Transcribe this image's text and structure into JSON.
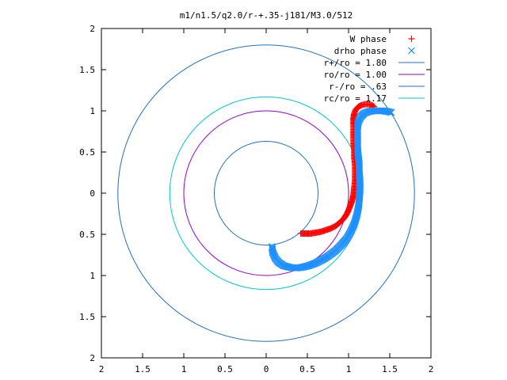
{
  "chart_data": {
    "type": "scatter",
    "title": "m1/n1.5/q2.0/r-+.35-j181/M3.0/512",
    "xlabel": "",
    "ylabel": "",
    "xlim": [
      -2,
      2
    ],
    "ylim": [
      -2,
      2
    ],
    "x_ticks": [
      -2,
      -1.5,
      -1,
      -0.5,
      0,
      0.5,
      1,
      1.5,
      2
    ],
    "y_ticks": [
      -2,
      -1.5,
      -1,
      -0.5,
      0,
      0.5,
      1,
      1.5,
      2
    ],
    "x_tick_labels": [
      "2",
      "1.5",
      "1",
      "0.5",
      "0",
      "0.5",
      "1",
      "1.5",
      "2"
    ],
    "y_tick_labels": [
      "2",
      "1.5",
      "1",
      "0.5",
      "0",
      "0.5",
      "1",
      "1.5",
      "2"
    ],
    "grid": false,
    "legend_position": "top-right",
    "series": [
      {
        "name": "W phase",
        "kind": "points",
        "marker": "plus",
        "color": "#ff0000",
        "points": [
          [
            0.42,
            -0.49
          ],
          [
            0.48,
            -0.49
          ],
          [
            0.54,
            -0.49
          ],
          [
            0.6,
            -0.48
          ],
          [
            0.66,
            -0.47
          ],
          [
            0.72,
            -0.45
          ],
          [
            0.78,
            -0.43
          ],
          [
            0.84,
            -0.4
          ],
          [
            0.89,
            -0.36
          ],
          [
            0.94,
            -0.31
          ],
          [
            0.98,
            -0.25
          ],
          [
            1.01,
            -0.18
          ],
          [
            1.04,
            -0.1
          ],
          [
            1.06,
            -0.02
          ],
          [
            1.07,
            0.07
          ],
          [
            1.08,
            0.16
          ],
          [
            1.08,
            0.25
          ],
          [
            1.08,
            0.34
          ],
          [
            1.07,
            0.43
          ],
          [
            1.07,
            0.52
          ],
          [
            1.06,
            0.6
          ],
          [
            1.06,
            0.68
          ],
          [
            1.06,
            0.76
          ],
          [
            1.06,
            0.84
          ],
          [
            1.06,
            0.91
          ],
          [
            1.07,
            0.97
          ],
          [
            1.09,
            1.02
          ],
          [
            1.12,
            1.05
          ],
          [
            1.16,
            1.07
          ],
          [
            1.2,
            1.08
          ],
          [
            1.24,
            1.08
          ],
          [
            1.28,
            1.07
          ],
          [
            1.31,
            1.05
          ]
        ]
      },
      {
        "name": "drho phase",
        "kind": "points",
        "marker": "cross",
        "color": "#1e90ff",
        "points": [
          [
            0.07,
            -0.65
          ],
          [
            0.08,
            -0.72
          ],
          [
            0.11,
            -0.79
          ],
          [
            0.15,
            -0.84
          ],
          [
            0.21,
            -0.88
          ],
          [
            0.28,
            -0.9
          ],
          [
            0.36,
            -0.91
          ],
          [
            0.44,
            -0.9
          ],
          [
            0.52,
            -0.88
          ],
          [
            0.6,
            -0.85
          ],
          [
            0.68,
            -0.81
          ],
          [
            0.76,
            -0.76
          ],
          [
            0.84,
            -0.7
          ],
          [
            0.91,
            -0.63
          ],
          [
            0.98,
            -0.55
          ],
          [
            1.03,
            -0.46
          ],
          [
            1.07,
            -0.37
          ],
          [
            1.1,
            -0.27
          ],
          [
            1.12,
            -0.17
          ],
          [
            1.13,
            -0.07
          ],
          [
            1.14,
            0.04
          ],
          [
            1.14,
            0.14
          ],
          [
            1.13,
            0.24
          ],
          [
            1.13,
            0.34
          ],
          [
            1.12,
            0.44
          ],
          [
            1.11,
            0.54
          ],
          [
            1.11,
            0.63
          ],
          [
            1.11,
            0.72
          ],
          [
            1.11,
            0.8
          ],
          [
            1.12,
            0.87
          ],
          [
            1.15,
            0.93
          ],
          [
            1.19,
            0.97
          ],
          [
            1.24,
            0.99
          ],
          [
            1.3,
            1.0
          ],
          [
            1.36,
            1.0
          ],
          [
            1.42,
            1.0
          ],
          [
            1.48,
            0.99
          ],
          [
            1.52,
            0.98
          ]
        ]
      },
      {
        "name": "r+/ro = 1.80",
        "kind": "circle",
        "radius": 1.8,
        "color": "#1f6fbf"
      },
      {
        "name": "ro/ro = 1.00",
        "kind": "circle",
        "radius": 1.0,
        "color": "#9400d3"
      },
      {
        "name": "r-/ro = .63",
        "kind": "circle",
        "radius": 0.63,
        "color": "#1f6fbf"
      },
      {
        "name": "rc/ro = 1.17",
        "kind": "circle",
        "radius": 1.17,
        "color": "#00c8c8"
      }
    ]
  }
}
